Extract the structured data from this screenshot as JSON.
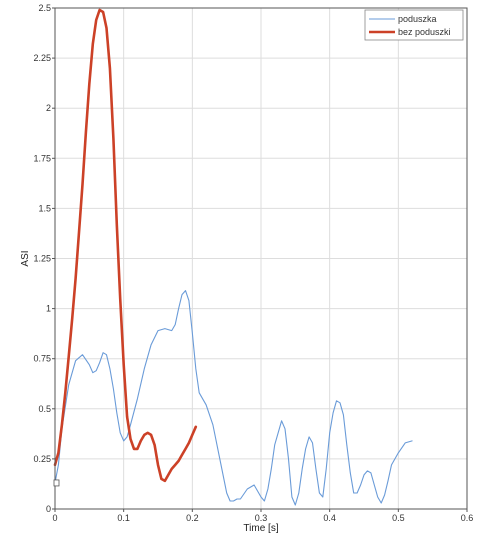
{
  "chart_data": {
    "type": "line",
    "title": "",
    "xlabel": "Time [s]",
    "ylabel": "ASI",
    "xlim": [
      0,
      0.6
    ],
    "ylim": [
      0,
      2.5
    ],
    "x_ticks": [
      0,
      0.1,
      0.2,
      0.3,
      0.4,
      0.5,
      0.6
    ],
    "x_tick_labels": [
      "0",
      "0.1",
      "0.2",
      "0.3",
      "0.4",
      "0.5",
      "0.6"
    ],
    "y_ticks": [
      0,
      0.25,
      0.5,
      0.75,
      1,
      1.25,
      1.5,
      1.75,
      2,
      2.25,
      2.5
    ],
    "y_tick_labels": [
      "0",
      "0.25",
      "0.5",
      "0.75",
      "1",
      "1.25",
      "1.5",
      "1.75",
      "2",
      "2.25",
      "2.5"
    ],
    "grid": true,
    "legend_position": "top-right",
    "series": [
      {
        "name": "poduszka",
        "color": "#6a9bd8",
        "x": [
          0,
          0.005,
          0.01,
          0.02,
          0.03,
          0.04,
          0.05,
          0.055,
          0.06,
          0.065,
          0.07,
          0.075,
          0.08,
          0.085,
          0.09,
          0.095,
          0.1,
          0.105,
          0.11,
          0.12,
          0.13,
          0.14,
          0.15,
          0.16,
          0.17,
          0.175,
          0.18,
          0.185,
          0.19,
          0.195,
          0.2,
          0.205,
          0.21,
          0.22,
          0.23,
          0.24,
          0.25,
          0.255,
          0.26,
          0.265,
          0.27,
          0.28,
          0.29,
          0.3,
          0.305,
          0.31,
          0.315,
          0.32,
          0.33,
          0.335,
          0.34,
          0.345,
          0.35,
          0.355,
          0.36,
          0.365,
          0.37,
          0.375,
          0.38,
          0.385,
          0.39,
          0.395,
          0.4,
          0.405,
          0.41,
          0.415,
          0.42,
          0.425,
          0.43,
          0.435,
          0.44,
          0.445,
          0.45,
          0.455,
          0.46,
          0.465,
          0.47,
          0.475,
          0.48,
          0.485,
          0.49,
          0.5,
          0.51,
          0.52
        ],
        "y": [
          0.13,
          0.22,
          0.4,
          0.62,
          0.74,
          0.77,
          0.72,
          0.68,
          0.69,
          0.73,
          0.78,
          0.77,
          0.7,
          0.6,
          0.48,
          0.38,
          0.34,
          0.36,
          0.42,
          0.55,
          0.7,
          0.82,
          0.89,
          0.9,
          0.89,
          0.92,
          1.0,
          1.07,
          1.09,
          1.04,
          0.88,
          0.7,
          0.58,
          0.52,
          0.42,
          0.25,
          0.08,
          0.04,
          0.04,
          0.05,
          0.05,
          0.1,
          0.12,
          0.06,
          0.04,
          0.1,
          0.2,
          0.32,
          0.44,
          0.4,
          0.25,
          0.06,
          0.02,
          0.08,
          0.2,
          0.3,
          0.36,
          0.33,
          0.2,
          0.08,
          0.06,
          0.2,
          0.38,
          0.48,
          0.54,
          0.53,
          0.47,
          0.32,
          0.18,
          0.08,
          0.08,
          0.12,
          0.17,
          0.19,
          0.18,
          0.12,
          0.06,
          0.03,
          0.07,
          0.14,
          0.22,
          0.28,
          0.33,
          0.34
        ]
      },
      {
        "name": "bez poduszki",
        "color": "#cc4127",
        "x": [
          0,
          0.005,
          0.01,
          0.015,
          0.02,
          0.025,
          0.03,
          0.035,
          0.04,
          0.045,
          0.05,
          0.055,
          0.06,
          0.065,
          0.07,
          0.075,
          0.08,
          0.085,
          0.09,
          0.095,
          0.1,
          0.105,
          0.11,
          0.115,
          0.12,
          0.125,
          0.13,
          0.135,
          0.14,
          0.145,
          0.15,
          0.155,
          0.16,
          0.165,
          0.17,
          0.175,
          0.18,
          0.185,
          0.19,
          0.195,
          0.2,
          0.205
        ],
        "y": [
          0.22,
          0.28,
          0.42,
          0.58,
          0.76,
          0.95,
          1.15,
          1.38,
          1.62,
          1.88,
          2.12,
          2.32,
          2.44,
          2.49,
          2.48,
          2.4,
          2.2,
          1.85,
          1.42,
          1.05,
          0.72,
          0.46,
          0.35,
          0.3,
          0.3,
          0.34,
          0.37,
          0.38,
          0.37,
          0.32,
          0.22,
          0.15,
          0.14,
          0.17,
          0.2,
          0.22,
          0.24,
          0.27,
          0.3,
          0.33,
          0.37,
          0.41
        ]
      }
    ]
  }
}
